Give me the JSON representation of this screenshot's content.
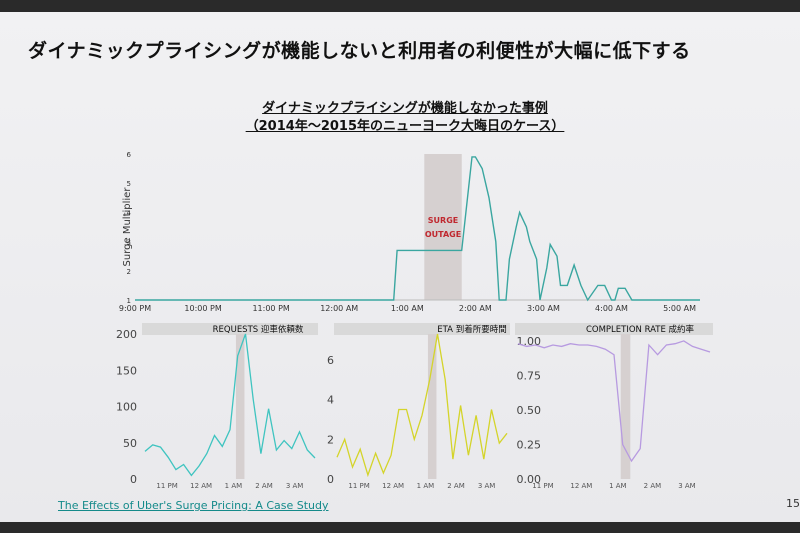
{
  "slide": {
    "headline": "ダイナミックプライシングが機能しないと利用者の利便性が大幅に低下する",
    "subtitle_line1": "ダイナミックプライシングが機能しなかった事例",
    "subtitle_line2": "（2014年〜2015年のニューヨーク大晦日のケース）",
    "source": "The Effects of Uber's Surge Pricing: A Case Study",
    "page_number": "15"
  },
  "colors": {
    "surge_line": "#3aa6a0",
    "requests_line": "#3fc4c0",
    "eta_line": "#d4d42a",
    "completion_line": "#b79ae0",
    "outage_band": "#d6d0d0",
    "outage_text": "#c0282f"
  },
  "chart_data": [
    {
      "type": "line",
      "name": "surge",
      "ylabel": "Surge Multiplier",
      "yticks": [
        "1",
        "2",
        "3",
        "4",
        "5",
        "6"
      ],
      "ylim": [
        1,
        6
      ],
      "xticks": [
        "9:00 PM",
        "10:00 PM",
        "11:00 PM",
        "12:00 AM",
        "1:00 AM",
        "2:00 AM",
        "3:00 AM",
        "4:00 AM",
        "5:00 AM"
      ],
      "xlim": [
        0,
        8.3
      ],
      "annotation": [
        "SURGE",
        "OUTAGE"
      ],
      "outage": [
        4.25,
        4.8
      ],
      "x": [
        0,
        3.8,
        3.85,
        4.05,
        4.1,
        4.25,
        4.8,
        4.95,
        5.0,
        5.1,
        5.15,
        5.2,
        5.3,
        5.35,
        5.45,
        5.5,
        5.6,
        5.65,
        5.75,
        5.8,
        5.9,
        5.95,
        6.05,
        6.1,
        6.2,
        6.25,
        6.35,
        6.45,
        6.55,
        6.65,
        6.8,
        6.9,
        7.0,
        7.05,
        7.1,
        7.2,
        7.3,
        8.3
      ],
      "y": [
        1.0,
        1.0,
        2.7,
        2.7,
        2.7,
        2.7,
        2.7,
        5.9,
        5.9,
        5.5,
        5.0,
        4.5,
        3.0,
        1.0,
        1.0,
        2.4,
        3.5,
        4.0,
        3.5,
        3.0,
        2.4,
        1.0,
        2.1,
        2.9,
        2.5,
        1.5,
        1.5,
        2.2,
        1.5,
        1.0,
        1.5,
        1.5,
        1.0,
        1.0,
        1.4,
        1.4,
        1.0,
        1.0
      ]
    },
    {
      "type": "line",
      "name": "requests",
      "title": "REQUESTS 迎車依頼数",
      "yticks": [
        "0",
        "50",
        "100",
        "150",
        "200"
      ],
      "ylim": [
        0,
        200
      ],
      "xticks": [
        "11 PM",
        "12 AM",
        "1 AM",
        "2 AM",
        "3 AM"
      ],
      "xlim": [
        0,
        20
      ],
      "outage": [
        10.7,
        11.7
      ],
      "values": [
        38,
        47,
        44,
        30,
        13,
        20,
        5,
        18,
        35,
        60,
        45,
        68,
        170,
        200,
        110,
        35,
        97,
        40,
        53,
        42,
        65,
        40,
        29
      ]
    },
    {
      "type": "line",
      "name": "eta",
      "title": "ETA  到着所要時間",
      "yticks": [
        "0",
        "2",
        "4",
        "6"
      ],
      "ylim": [
        0,
        7.3
      ],
      "xticks": [
        "11 PM",
        "12 AM",
        "1 AM",
        "2 AM",
        "3 AM"
      ],
      "xlim": [
        0,
        20
      ],
      "outage": [
        10.7,
        11.7
      ],
      "values": [
        1.1,
        2.0,
        0.6,
        1.5,
        0.2,
        1.3,
        0.3,
        1.2,
        3.5,
        3.5,
        2.0,
        3.2,
        5.0,
        7.3,
        5.0,
        1.0,
        3.7,
        1.2,
        3.2,
        1.0,
        3.5,
        1.8,
        2.3
      ]
    },
    {
      "type": "line",
      "name": "completion",
      "title": "COMPLETION RATE 成約率",
      "yticks": [
        "0.00",
        "0.25",
        "0.50",
        "0.75",
        "1.00"
      ],
      "ylim": [
        0,
        1.05
      ],
      "xticks": [
        "11 PM",
        "12 AM",
        "1 AM",
        "2 AM",
        "3 AM"
      ],
      "xlim": [
        0,
        20
      ],
      "outage": [
        10.7,
        11.7
      ],
      "values": [
        0.98,
        0.96,
        0.97,
        0.95,
        0.97,
        0.96,
        0.98,
        0.97,
        0.97,
        0.96,
        0.94,
        0.9,
        0.25,
        0.13,
        0.22,
        0.97,
        0.9,
        0.97,
        0.98,
        1.0,
        0.96,
        0.94,
        0.92
      ]
    }
  ]
}
